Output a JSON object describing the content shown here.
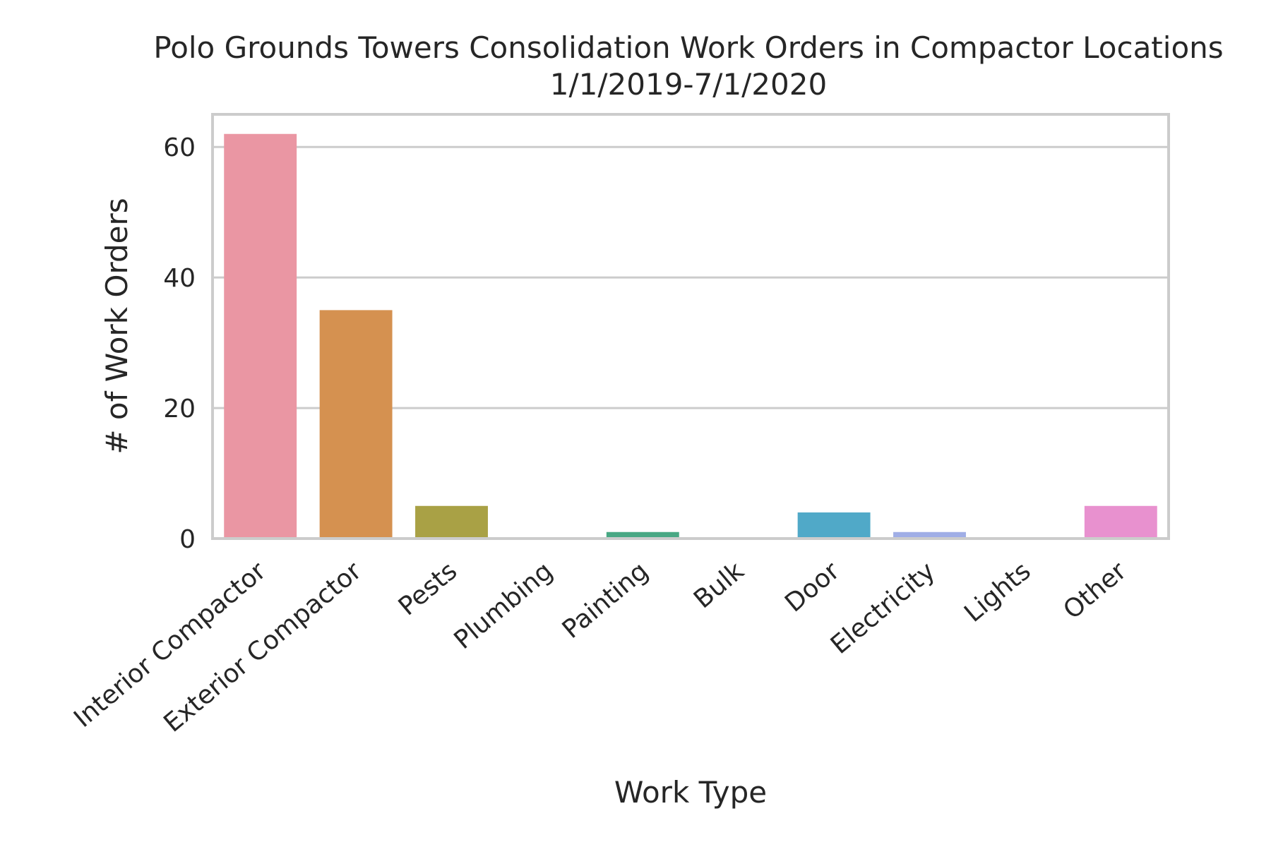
{
  "chart_data": {
    "type": "bar",
    "title": "Polo Grounds Towers Consolidation Work Orders in Compactor Locations",
    "subtitle": "1/1/2019-7/1/2020",
    "xlabel": "Work Type",
    "ylabel": "# of Work Orders",
    "categories": [
      "Interior Compactor",
      "Exterior Compactor",
      "Pests",
      "Plumbing",
      "Painting",
      "Bulk",
      "Door",
      "Electricity",
      "Lights",
      "Other"
    ],
    "values": [
      62,
      35,
      5,
      0,
      1,
      0,
      4,
      1,
      0,
      5
    ],
    "colors": [
      "#ea96a3",
      "#d59150",
      "#a9a145",
      "#7fac4a",
      "#48a884",
      "#4aab9f",
      "#50a9c8",
      "#a0aee6",
      "#cd8fe7",
      "#e891cf"
    ],
    "ylim": [
      0,
      65
    ],
    "yticks": [
      0,
      20,
      40,
      60
    ],
    "grid": true,
    "legend": "none"
  }
}
